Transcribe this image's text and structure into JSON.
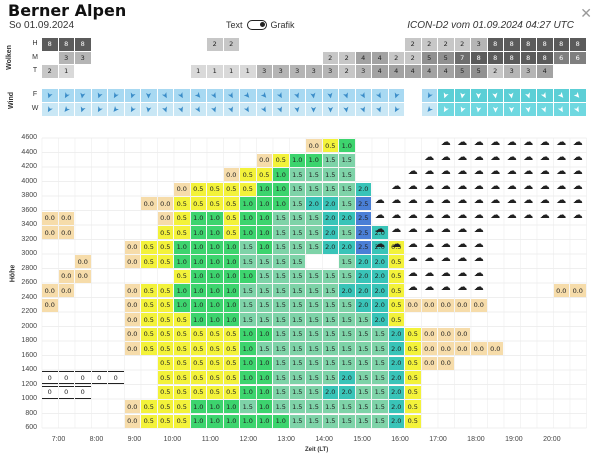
{
  "header": {
    "title": "Berner Alpen",
    "date": "So 01.09.2024",
    "toggle_left": "Text",
    "toggle_right": "Grafik",
    "model": "ICON-D2 vom 01.09.2024 04:27 UTC",
    "close_icon": "close-icon"
  },
  "clouds": {
    "label": "Wolken",
    "rows": [
      {
        "name": "H",
        "values": [
          "8",
          "8",
          "8",
          "",
          "",
          "",
          "",
          "",
          "",
          "",
          "2",
          "2",
          "",
          "",
          "",
          "",
          "",
          "",
          "",
          "",
          "",
          "",
          "2",
          "2",
          "2",
          "2",
          "3",
          "8",
          "8",
          "8",
          "8",
          "8",
          "8"
        ]
      },
      {
        "name": "M",
        "values": [
          "",
          "3",
          "3",
          "",
          "",
          "",
          "",
          "",
          "",
          "",
          "",
          "",
          "",
          "",
          "",
          "",
          "",
          "2",
          "2",
          "4",
          "4",
          "2",
          "2",
          "5",
          "5",
          "7",
          "8",
          "8",
          "8",
          "8",
          "8",
          "6",
          "6"
        ]
      },
      {
        "name": "T",
        "values": [
          "2",
          "1",
          "",
          "",
          "",
          "",
          "",
          "",
          "",
          "1",
          "1",
          "1",
          "1",
          "3",
          "3",
          "3",
          "3",
          "3",
          "2",
          "3",
          "4",
          "4",
          "4",
          "4",
          "4",
          "5",
          "5",
          "2",
          "3",
          "3",
          "4",
          "",
          ""
        ]
      }
    ]
  },
  "wind": {
    "label": "Wind",
    "rows": [
      "F",
      "W"
    ]
  },
  "chart_data": {
    "type": "heatmap",
    "title": "",
    "ylabel": "Höhe",
    "xlabel": "Zeit (LT)",
    "y_ticks": [
      600,
      800,
      1000,
      1200,
      1400,
      1600,
      1800,
      2000,
      2200,
      2400,
      2600,
      2800,
      3000,
      3200,
      3400,
      3600,
      3800,
      4000,
      4200,
      4400,
      4600
    ],
    "x_ticks": [
      "7:00",
      "8:00",
      "9:00",
      "10:00",
      "11:00",
      "12:00",
      "13:00",
      "14:00",
      "15:00",
      "16:00",
      "17:00",
      "18:00",
      "19:00",
      "20:00"
    ],
    "legend_values": [
      "0.0",
      "0.5",
      "1.0",
      "1.5",
      "2.0",
      "2.5"
    ],
    "colors": {
      "0.0": "#f6dcaa",
      "0.5": "#f3f23a",
      "1.0": "#3dd46e",
      "1.5": "#7ed3a8",
      "2.0": "#39c4b8",
      "2.5": "#4a7fd6"
    },
    "rows": {
      "4400": [
        "",
        "",
        "",
        "",
        "",
        "",
        "",
        "",
        "",
        "",
        "",
        "",
        "",
        "",
        "",
        "",
        "0.0",
        "0.5",
        "1.0",
        "",
        "",
        "",
        "",
        "",
        "",
        "",
        "",
        "",
        "",
        "",
        "",
        "",
        ""
      ],
      "4200": [
        "",
        "",
        "",
        "",
        "",
        "",
        "",
        "",
        "",
        "",
        "",
        "",
        "",
        "0.0",
        "0.5",
        "1.0",
        "1.0",
        "1.5",
        "1.5",
        "",
        "",
        "",
        "",
        "",
        "",
        "",
        "",
        "",
        "",
        "",
        "",
        "",
        ""
      ],
      "4000": [
        "",
        "",
        "",
        "",
        "",
        "",
        "",
        "",
        "",
        "",
        "",
        "0.0",
        "0.5",
        "0.5",
        "1.0",
        "1.5",
        "1.5",
        "1.5",
        "1.5",
        "",
        "",
        "",
        "",
        "",
        "",
        "",
        "",
        "",
        "",
        "",
        "",
        "",
        ""
      ],
      "3800": [
        "",
        "",
        "",
        "",
        "",
        "",
        "",
        "",
        "0.0",
        "0.5",
        "0.5",
        "0.5",
        "0.5",
        "1.0",
        "1.0",
        "1.5",
        "1.5",
        "1.5",
        "1.5",
        "2.0",
        "",
        "",
        "",
        "",
        "",
        "",
        "",
        "",
        "",
        "",
        "",
        "",
        ""
      ],
      "3600": [
        "",
        "",
        "",
        "",
        "",
        "",
        "0.0",
        "0.0",
        "0.5",
        "0.5",
        "0.5",
        "0.5",
        "1.0",
        "1.0",
        "1.0",
        "1.5",
        "2.0",
        "2.0",
        "1.5",
        "2.5",
        "",
        "",
        "",
        "",
        "",
        "",
        "",
        "",
        "",
        "",
        "",
        "",
        ""
      ],
      "3400": [
        "0.0",
        "0.0",
        "",
        "",
        "",
        "",
        "",
        "0.0",
        "0.5",
        "1.0",
        "1.0",
        "0.5",
        "1.0",
        "1.0",
        "1.5",
        "1.5",
        "1.5",
        "2.0",
        "2.0",
        "2.5",
        "",
        "",
        "",
        "",
        "",
        "",
        "",
        "",
        "",
        "",
        "",
        "",
        ""
      ],
      "3200": [
        "0.0",
        "0.0",
        "",
        "",
        "",
        "",
        "",
        "0.5",
        "0.5",
        "1.0",
        "1.0",
        "0.5",
        "1.0",
        "1.0",
        "1.5",
        "1.5",
        "1.5",
        "2.0",
        "1.5",
        "2.5",
        "2.0",
        "",
        "",
        "",
        "",
        "",
        "",
        "",
        "",
        "",
        "",
        "",
        ""
      ],
      "3000": [
        "",
        "",
        "",
        "",
        "",
        "0.0",
        "0.5",
        "0.5",
        "1.0",
        "1.0",
        "1.0",
        "1.0",
        "1.5",
        "1.0",
        "1.5",
        "1.5",
        "1.5",
        "2.0",
        "2.0",
        "2.5",
        "2.0",
        "0.5",
        "",
        "",
        "",
        "",
        "",
        "",
        "",
        "",
        "",
        "",
        ""
      ],
      "2800": [
        "",
        "",
        "0.0",
        "",
        "",
        "0.0",
        "0.5",
        "0.5",
        "1.0",
        "1.0",
        "1.0",
        "1.0",
        "1.5",
        "1.5",
        "1.5",
        "1.5",
        "",
        "",
        "1.5",
        "2.0",
        "2.0",
        "0.5",
        "",
        "",
        "",
        "",
        "",
        "",
        "",
        "",
        "",
        "",
        ""
      ],
      "2600": [
        "",
        "0.0",
        "0.0",
        "",
        "",
        "",
        "",
        "",
        "0.5",
        "1.0",
        "1.0",
        "1.0",
        "1.0",
        "1.5",
        "1.5",
        "1.5",
        "1.5",
        "1.5",
        "1.5",
        "2.0",
        "2.0",
        "0.5",
        "",
        "",
        "",
        "",
        "",
        "",
        "",
        "",
        "",
        "",
        ""
      ],
      "2400": [
        "0.0",
        "0.0",
        "",
        "",
        "",
        "0.0",
        "0.5",
        "0.5",
        "1.0",
        "1.0",
        "1.0",
        "1.0",
        "1.5",
        "1.5",
        "1.5",
        "1.5",
        "1.5",
        "1.5",
        "2.0",
        "2.0",
        "2.0",
        "0.5",
        "",
        "",
        "",
        "",
        "",
        "",
        "",
        "",
        "",
        "0.0",
        "0.0"
      ],
      "2200": [
        "0.0",
        "",
        "",
        "",
        "",
        "0.0",
        "0.5",
        "0.5",
        "1.0",
        "1.0",
        "1.0",
        "1.0",
        "1.5",
        "1.5",
        "1.5",
        "1.5",
        "1.5",
        "1.5",
        "1.5",
        "2.0",
        "2.0",
        "0.5",
        "0.0",
        "0.0",
        "0.0",
        "0.0",
        "0.0",
        "",
        "",
        "",
        "",
        "",
        ""
      ],
      "2000": [
        "",
        "",
        "",
        "",
        "",
        "0.0",
        "0.5",
        "0.5",
        "0.5",
        "1.0",
        "1.0",
        "1.0",
        "1.5",
        "1.5",
        "1.5",
        "1.5",
        "1.5",
        "1.5",
        "1.5",
        "1.5",
        "2.0",
        "0.5",
        "",
        "",
        "",
        "",
        "",
        "",
        "",
        "",
        "",
        "",
        ""
      ],
      "1800": [
        "",
        "",
        "",
        "",
        "",
        "0.0",
        "0.5",
        "0.5",
        "0.5",
        "0.5",
        "0.5",
        "0.5",
        "1.0",
        "1.0",
        "1.5",
        "1.5",
        "1.5",
        "1.5",
        "1.5",
        "1.5",
        "1.5",
        "2.0",
        "0.5",
        "0.0",
        "0.0",
        "0.0",
        "",
        "",
        "",
        "",
        "",
        "",
        ""
      ],
      "1600": [
        "",
        "",
        "",
        "",
        "",
        "0.0",
        "0.5",
        "0.5",
        "0.5",
        "0.5",
        "0.5",
        "0.5",
        "1.0",
        "1.5",
        "1.5",
        "1.5",
        "1.5",
        "1.5",
        "1.5",
        "1.5",
        "1.5",
        "2.0",
        "0.5",
        "0.0",
        "0.0",
        "0.0",
        "0.0",
        "0.0",
        "",
        "",
        "",
        "",
        ""
      ],
      "1400": [
        "",
        "",
        "",
        "",
        "",
        "",
        "",
        "0.5",
        "0.5",
        "0.5",
        "0.5",
        "0.5",
        "1.0",
        "1.0",
        "1.5",
        "1.5",
        "1.5",
        "1.5",
        "1.5",
        "1.5",
        "1.5",
        "2.0",
        "0.5",
        "0.0",
        "0.0",
        "",
        "",
        "",
        "",
        "",
        "",
        "",
        ""
      ],
      "1200": [
        "0",
        "0",
        "0",
        "0",
        "0",
        "",
        "",
        "0.5",
        "0.5",
        "0.5",
        "0.5",
        "0.5",
        "1.0",
        "1.0",
        "1.5",
        "1.5",
        "1.5",
        "1.5",
        "2.0",
        "1.5",
        "1.5",
        "2.0",
        "0.5",
        "",
        "",
        "",
        "",
        "",
        "",
        "",
        "",
        "",
        ""
      ],
      "1000": [
        "0",
        "0",
        "0",
        "",
        "",
        "",
        "",
        "0.5",
        "0.5",
        "0.5",
        "0.5",
        "0.5",
        "1.0",
        "1.0",
        "1.5",
        "1.5",
        "1.5",
        "2.0",
        "2.0",
        "1.5",
        "1.5",
        "2.0",
        "0.5",
        "",
        "",
        "",
        "",
        "",
        "",
        "",
        "",
        "",
        ""
      ],
      "800": [
        "",
        "",
        "",
        "",
        "",
        "0.0",
        "0.5",
        "0.5",
        "0.5",
        "1.0",
        "1.0",
        "1.0",
        "1.5",
        "1.0",
        "1.5",
        "1.5",
        "1.5",
        "1.5",
        "1.5",
        "1.5",
        "1.5",
        "2.0",
        "0.5",
        "",
        "",
        "",
        "",
        "",
        "",
        "",
        "",
        "",
        ""
      ],
      "600": [
        "",
        "",
        "",
        "",
        "",
        "0.0",
        "0.5",
        "0.5",
        "0.5",
        "1.0",
        "1.0",
        "1.0",
        "1.0",
        "1.0",
        "1.0",
        "1.5",
        "1.5",
        "1.5",
        "1.5",
        "1.5",
        "1.5",
        "2.0",
        "0.5",
        "",
        "",
        "",
        "",
        "",
        "",
        "",
        "",
        "",
        ""
      ]
    }
  }
}
